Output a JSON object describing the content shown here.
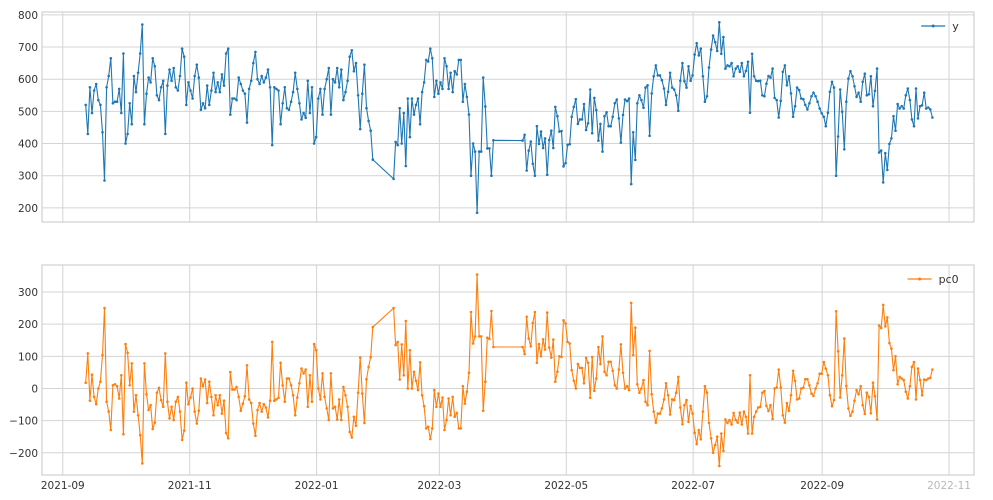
{
  "chart_data": [
    {
      "type": "line",
      "title": "",
      "xlabel": "",
      "ylabel": "",
      "ylim": [
        156,
        809
      ],
      "yticks": [
        200,
        300,
        400,
        500,
        600,
        700,
        800
      ],
      "xlim": [
        "2021-08-22",
        "2022-11-13"
      ],
      "grid": true,
      "legend": "top-right",
      "series": [
        {
          "name": "y",
          "color": "#1f77b4",
          "marker": "dot",
          "segments": [
            {
              "start": "2021-09-12",
              "end": "2022-01-28",
              "values": [
                520,
                430,
                575,
                495,
                565,
                585,
                535,
                520,
                435,
                285,
                575,
                610,
                665,
                525,
                530,
                530,
                570,
                495,
                680,
                400,
                430,
                525,
                460,
                610,
                560,
                620,
                680,
                770,
                460,
                555,
                605,
                590,
                665,
                640,
                550,
                535,
                575,
                595,
                430,
                580,
                630,
                595,
                635,
                575,
                565,
                610,
                695,
                670,
                520,
                590,
                565,
                540,
                610,
                645,
                605,
                505,
                525,
                510,
                580,
                520,
                565,
                620,
                560,
                590,
                560,
                615,
                580,
                680,
                695,
                490,
                540,
                540,
                535,
                605,
                585,
                565,
                555,
                465,
                570,
                595,
                650,
                685,
                600,
                585,
                610,
                590,
                605,
                630,
                575,
                395,
                575,
                570,
                565,
                460,
                525,
                575,
                510,
                505,
                530,
                560,
                620,
                570,
                525,
                475,
                495,
                480,
                595,
                495,
                575,
                400,
                420,
                540,
                570,
                490,
                570,
                600,
                635,
                490,
                600,
                590,
                635,
                575,
                630,
                535,
                560,
                595,
                670,
                690,
                625,
                650,
                550,
                445,
                555,
                645,
                510,
                470,
                440,
                350
              ]
            },
            {
              "start": "2022-02-07",
              "end": "2022-03-27",
              "values": [
                290,
                405,
                395,
                510,
                400,
                495,
                330,
                540,
                420,
                540,
                490,
                520,
                540,
                460,
                560,
                590,
                660,
                655,
                695,
                665,
                545,
                595,
                555,
                590,
                570,
                665,
                640,
                570,
                620,
                560,
                625,
                615,
                660,
                660,
                530,
                585,
                545,
                490,
                300,
                400,
                375,
                185,
                375,
                375,
                605,
                515,
                385,
                385,
                300,
                410
              ]
            },
            {
              "start": "2022-04-10",
              "end": "2022-10-24",
              "values": [
                409,
                427,
                316,
                378,
                406,
                337,
                300,
                454,
                399,
                437,
                386,
                416,
                303,
                411,
                440,
                386,
                514,
                485,
                437,
                439,
                329,
                339,
                396,
                398,
                483,
                514,
                538,
                461,
                475,
                475,
                523,
                442,
                463,
                568,
                432,
                542,
                504,
                409,
                461,
                375,
                485,
                497,
                454,
                454,
                483,
                525,
                537,
                478,
                403,
                489,
                537,
                532,
                540,
                274,
                435,
                349,
                525,
                550,
                535,
                511,
                574,
                581,
                424,
                556,
                609,
                643,
                612,
                612,
                597,
                571,
                520,
                561,
                620,
                574,
                568,
                550,
                502,
                595,
                650,
                594,
                574,
                640,
                595,
                612,
                677,
                712,
                674,
                695,
                609,
                530,
                547,
                636,
                692,
                736,
                715,
                688,
                777,
                679,
                731,
                633,
                643,
                640,
                650,
                609,
                633,
                640,
                623,
                650,
                609,
                626,
                654,
                496,
                679,
                609,
                595,
                594,
                595,
                550,
                547,
                586,
                610,
                605,
                633,
                542,
                535,
                481,
                533,
                623,
                643,
                581,
                609,
                556,
                483,
                516,
                574,
                566,
                540,
                538,
                520,
                506,
                525,
                547,
                558,
                547,
                530,
                509,
                494,
                483,
                454,
                496,
                561,
                592,
                574,
                300,
                422,
                568,
                499,
                382,
                530,
                602,
                625,
                609,
                578,
                545,
                558,
                530,
                592,
                617,
                550,
                553,
                609,
                516,
                564,
                633,
                372,
                378,
                279,
                370,
                318,
                399,
                416,
                485,
                440,
                523,
                509,
                516,
                509,
                550,
                571,
                535,
                475,
                454,
                571,
                478,
                516,
                519,
                558,
                509,
                512,
                506,
                481
              ]
            }
          ]
        }
      ]
    },
    {
      "type": "line",
      "title": "",
      "xlabel": "",
      "ylabel": "",
      "ylim": [
        -269,
        384
      ],
      "yticks": [
        -200,
        -100,
        0,
        100,
        200,
        300
      ],
      "xlim": [
        "2021-08-22",
        "2022-11-13"
      ],
      "xticks": [
        "2021-09-01",
        "2021-11-01",
        "2022-01-01",
        "2022-03-01",
        "2022-05-01",
        "2022-07-01",
        "2022-09-01",
        "2022-11-01"
      ],
      "xtick_labels": [
        "2021-09",
        "2021-11",
        "2022-01",
        "2022-03",
        "2022-05",
        "2022-07",
        "2022-09",
        "2022-11"
      ],
      "grid": true,
      "legend": "top-right",
      "series": [
        {
          "name": "pc0",
          "color": "#ff7f0e",
          "marker": "dot",
          "segments": [
            {
              "start": "2021-09-12",
              "end": "2022-01-28",
              "values": [
                18,
                109,
                -38,
                43,
                -26,
                -49,
                0,
                21,
                104,
                250,
                -41,
                -72,
                -129,
                10,
                13,
                7,
                -31,
                41,
                -142,
                138,
                111,
                10,
                78,
                -72,
                -21,
                -83,
                -145,
                -233,
                78,
                -18,
                -67,
                -52,
                -126,
                -106,
                -13,
                2,
                -36,
                -57,
                109,
                -41,
                -93,
                -57,
                -98,
                -41,
                -26,
                -72,
                -160,
                -131,
                18,
                -49,
                -28,
                0,
                -72,
                -109,
                -69,
                31,
                7,
                28,
                -45,
                21,
                -26,
                -83,
                -21,
                -52,
                -21,
                -78,
                -38,
                -138,
                -155,
                51,
                -3,
                -3,
                5,
                -26,
                -69,
                -47,
                -24,
                72,
                -34,
                -45,
                -109,
                -147,
                -67,
                -45,
                -72,
                -49,
                -59,
                -90,
                -38,
                145,
                -38,
                -34,
                -29,
                80,
                10,
                -41,
                31,
                31,
                10,
                -21,
                -83,
                -28,
                16,
                62,
                47,
                59,
                -57,
                41,
                -41,
                138,
                119,
                0,
                -34,
                47,
                -26,
                -62,
                -98,
                47,
                -62,
                -57,
                -96,
                -34,
                -98,
                5,
                -21,
                -57,
                -135,
                -152,
                -88,
                -116,
                -13,
                96,
                -16,
                -107,
                29,
                67,
                98,
                191
              ]
            },
            {
              "start": "2022-02-07",
              "end": "2022-03-27",
              "values": [
                250,
                135,
                145,
                28,
                137,
                41,
                210,
                0,
                119,
                0,
                52,
                24,
                -5,
                81,
                -21,
                -55,
                -124,
                -119,
                -157,
                -124,
                -5,
                -57,
                -16,
                -57,
                -28,
                -129,
                -98,
                -31,
                -83,
                -26,
                -88,
                -76,
                -124,
                -124,
                7,
                -47,
                -10,
                49,
                238,
                140,
                162,
                354,
                162,
                162,
                -69,
                21,
                158,
                154,
                241,
                129
              ]
            },
            {
              "start": "2022-04-10",
              "end": "2022-10-24",
              "values": [
                129,
                107,
                223,
                155,
                131,
                204,
                238,
                80,
                138,
                100,
                153,
                121,
                236,
                127,
                96,
                152,
                21,
                52,
                100,
                98,
                212,
                202,
                145,
                140,
                57,
                24,
                0,
                76,
                64,
                64,
                16,
                95,
                80,
                -29,
                98,
                -7,
                31,
                129,
                76,
                162,
                52,
                41,
                83,
                83,
                55,
                10,
                0,
                59,
                137,
                49,
                0,
                7,
                -5,
                266,
                104,
                189,
                13,
                -13,
                0,
                26,
                -41,
                -52,
                117,
                -18,
                -72,
                -106,
                -78,
                -78,
                -62,
                -34,
                16,
                -21,
                -81,
                -34,
                -36,
                -13,
                36,
                -59,
                -111,
                -52,
                -36,
                -104,
                -54,
                -78,
                -138,
                -173,
                -129,
                -158,
                -72,
                7,
                -13,
                -107,
                -155,
                -200,
                -176,
                -150,
                -241,
                -140,
                -194,
                -96,
                -107,
                -98,
                -112,
                -76,
                -98,
                -106,
                -75,
                -112,
                -72,
                -88,
                -140,
                41,
                -140,
                -88,
                -72,
                -59,
                -57,
                -13,
                -8,
                -54,
                -70,
                -52,
                -95,
                0,
                3,
                59,
                3,
                -83,
                -106,
                -45,
                -69,
                -21,
                55,
                24,
                -34,
                -31,
                0,
                2,
                29,
                29,
                10,
                -16,
                -23,
                0,
                16,
                46,
                46,
                82,
                62,
                41,
                -21,
                -55,
                -36,
                240,
                116,
                -28,
                41,
                155,
                8,
                -62,
                -85,
                -72,
                -38,
                -5,
                -18,
                7,
                -52,
                -79,
                -13,
                -26,
                -77,
                18,
                -24,
                -96,
                196,
                188,
                260,
                193,
                221,
                141,
                124,
                57,
                100,
                13,
                36,
                31,
                26,
                -10,
                -31,
                7,
                67,
                82,
                -34,
                62,
                26,
                -21,
                28,
                26,
                31,
                33,
                59
              ]
            }
          ]
        }
      ]
    }
  ]
}
